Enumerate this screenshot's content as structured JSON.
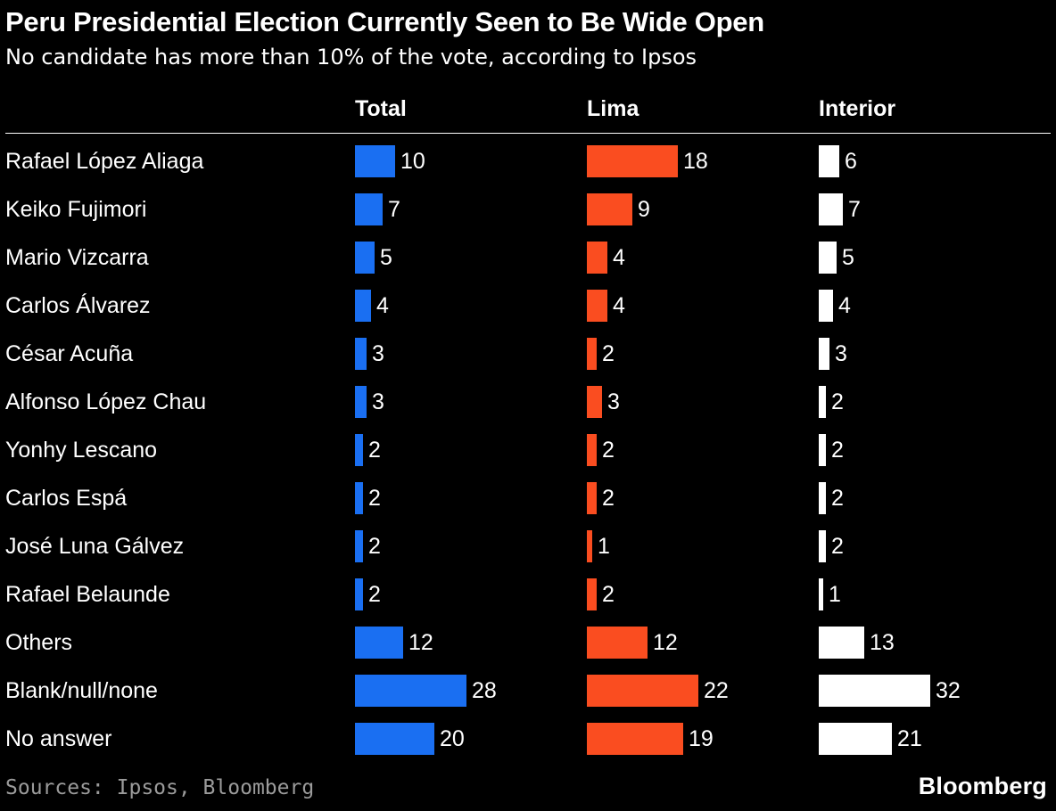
{
  "chart_data": {
    "type": "bar",
    "title": "Peru Presidential Election Currently Seen to Be Wide Open",
    "subtitle": "No candidate has more than 10% of the vote, according to Ipsos",
    "categories": [
      "Rafael López Aliaga",
      "Keiko Fujimori",
      "Mario Vizcarra",
      "Carlos Álvarez",
      "César Acuña",
      "Alfonso López Chau",
      "Yonhy Lescano",
      "Carlos Espá",
      "José Luna Gálvez",
      "Rafael Belaunde",
      "Others",
      "Blank/null/none",
      "No answer"
    ],
    "series": [
      {
        "name": "Total",
        "color": "#1a6ff2",
        "values": [
          10,
          7,
          5,
          4,
          3,
          3,
          2,
          2,
          2,
          2,
          12,
          28,
          20
        ]
      },
      {
        "name": "Lima",
        "color": "#fa4d20",
        "values": [
          18,
          9,
          4,
          4,
          2,
          3,
          2,
          2,
          1,
          2,
          12,
          22,
          19
        ]
      },
      {
        "name": "Interior",
        "color": "#ffffff",
        "values": [
          6,
          7,
          5,
          4,
          3,
          2,
          2,
          2,
          2,
          1,
          13,
          32,
          21
        ]
      }
    ],
    "ylim": [
      0,
      32
    ],
    "legend_position": "column-headers",
    "grid": false,
    "source": "Sources: Ipsos, Bloomberg",
    "brand": "Bloomberg"
  }
}
